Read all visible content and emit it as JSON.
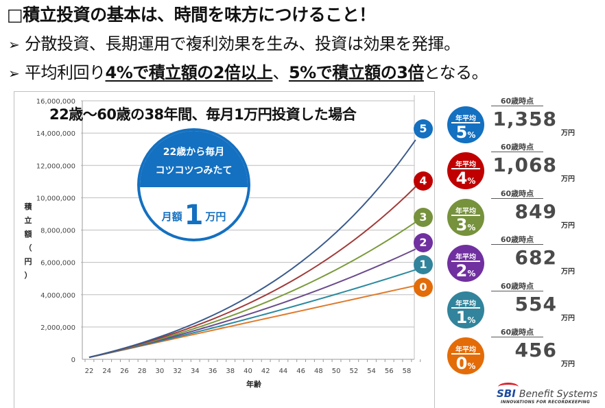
{
  "header": {
    "title": "□積立投資の基本は、時間を味方につけること！",
    "bullets": [
      {
        "arrow": "➢",
        "text": "分散投資、長期運用で複利効果を生み、投資は効果を発揮。"
      },
      {
        "arrow": "➢",
        "pre": "平均利回り",
        "em1": "4%で積立額の2倍以上",
        "mid": "、",
        "em2": "5%で積立額の3倍",
        "post": "となる。"
      }
    ]
  },
  "chart_data": {
    "type": "line",
    "title": "22歳〜60歳の38年間、毎月1万円投資した場合",
    "xlabel": "年齢",
    "ylabel": "積立額（円）",
    "ylabel_chars": [
      "積",
      "立",
      "額",
      "（",
      "円",
      "）"
    ],
    "ylim": [
      0,
      16000000
    ],
    "xlim": [
      22,
      60
    ],
    "y_ticks": [
      "0",
      "2,000,000",
      "4,000,000",
      "6,000,000",
      "8,000,000",
      "10,000,000",
      "12,000,000",
      "14,000,000",
      "16,000,000"
    ],
    "y_tick_values": [
      0,
      2000000,
      4000000,
      6000000,
      8000000,
      10000000,
      12000000,
      14000000,
      16000000
    ],
    "x_ticks": [
      "22",
      "24",
      "26",
      "28",
      "30",
      "32",
      "34",
      "36",
      "38",
      "40",
      "42",
      "44",
      "46",
      "48",
      "50",
      "52",
      "54",
      "56",
      "58"
    ],
    "x_tick_values": [
      22,
      24,
      26,
      28,
      30,
      32,
      34,
      36,
      38,
      40,
      42,
      44,
      46,
      48,
      50,
      52,
      54,
      56,
      58
    ],
    "grid": true,
    "annual_contribution": 120000,
    "x_start": 22,
    "x_end": 59,
    "series": [
      {
        "name": "5",
        "rate": 0.05,
        "final_value": 13580000,
        "color": "#3a5a8c",
        "marker_color": "#1470c0"
      },
      {
        "name": "4",
        "rate": 0.04,
        "final_value": 10680000,
        "color": "#a23a3a",
        "marker_color": "#c00000"
      },
      {
        "name": "3",
        "rate": 0.03,
        "final_value": 8490000,
        "color": "#7a9a3a",
        "marker_color": "#76923c"
      },
      {
        "name": "2",
        "rate": 0.02,
        "final_value": 6820000,
        "color": "#6a4a8c",
        "marker_color": "#7030a0"
      },
      {
        "name": "1",
        "rate": 0.01,
        "final_value": 5540000,
        "color": "#2a8aa0",
        "marker_color": "#31849b"
      },
      {
        "name": "0",
        "rate": 0.0,
        "final_value": 4560000,
        "color": "#e07a2a",
        "marker_color": "#e36c09"
      }
    ]
  },
  "badge": {
    "line1": "22歳から毎月",
    "line2": "コツコツつみたて",
    "pre": "月額",
    "big": "1",
    "post": "万円"
  },
  "results": [
    {
      "label": "年平均",
      "rate": "5",
      "pct": "%",
      "at60": "60歳時点",
      "amount": "1,358",
      "unit": "万円",
      "color": "#1470c0"
    },
    {
      "label": "年平均",
      "rate": "4",
      "pct": "%",
      "at60": "60歳時点",
      "amount": "1,068",
      "unit": "万円",
      "color": "#c00000"
    },
    {
      "label": "年平均",
      "rate": "3",
      "pct": "%",
      "at60": "60歳時点",
      "amount": "849",
      "unit": "万円",
      "color": "#76923c"
    },
    {
      "label": "年平均",
      "rate": "2",
      "pct": "%",
      "at60": "60歳時点",
      "amount": "682",
      "unit": "万円",
      "color": "#7030a0"
    },
    {
      "label": "年平均",
      "rate": "1",
      "pct": "%",
      "at60": "60歳時点",
      "amount": "554",
      "unit": "万円",
      "color": "#31849b"
    },
    {
      "label": "年平均",
      "rate": "0",
      "pct": "%",
      "at60": "60歳時点",
      "amount": "456",
      "unit": "万円",
      "color": "#e36c09"
    }
  ],
  "logo": {
    "brand": "SBI",
    "name": "Benefit Systems",
    "tagline": "INNOVATIONS FOR RECORDKEEPING"
  }
}
